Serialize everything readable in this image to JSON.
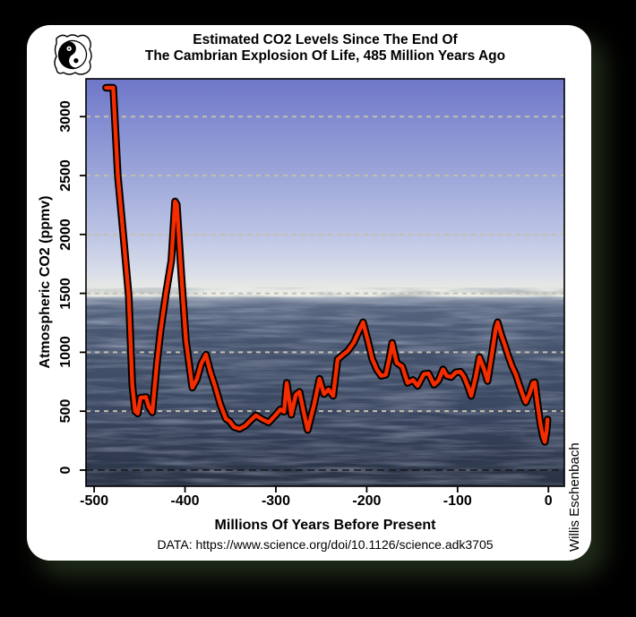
{
  "window": {
    "credit": "Willis Eschenbach"
  },
  "header": {
    "title_line1": "Estimated CO2 Levels Since The End Of",
    "title_line2": "The Cambrian Explosion Of Life, 485 Million Years Ago"
  },
  "footer": {
    "attribution": "DATA: https://www.science.org/doi/10.1126/science.adk3705"
  },
  "logo": {
    "name": "yin-yang-logo"
  },
  "colors": {
    "line_red": "#f42c00",
    "line_outline": "#000000",
    "grid_dash": "#c6bead",
    "zero_line": "#1a1a1a",
    "sky_top": "#6e76c8",
    "sky_horizon": "#eceee6",
    "ocean_mid": "#46536e",
    "ocean_deep": "#2b3346",
    "card_bg": "#ffffff",
    "page_bg": "#000000"
  },
  "chart_data": {
    "type": "line",
    "title": "Estimated CO2 Levels Since The End Of The Cambrian Explosion Of Life, 485 Million Years Ago",
    "xlabel": "Millions Of Years Before Present",
    "ylabel": "Atmospheric CO2 (ppmv)",
    "xlim": [
      -509,
      17.5
    ],
    "ylim": [
      -137,
      3321
    ],
    "x_ticks": [
      -500,
      -400,
      -300,
      -200,
      -100,
      0
    ],
    "x_tick_labels": [
      "-500",
      "-400",
      "-300",
      "-200",
      "-100",
      "0"
    ],
    "y_ticks": [
      0,
      500,
      1000,
      1500,
      2000,
      2500,
      3000
    ],
    "y_tick_labels": [
      "0",
      "500",
      "1000",
      "1500",
      "2000",
      "2500",
      "3000"
    ],
    "grid": "horizontal dashed gridlines at 500-3000; black dashed line at 0",
    "legend_position": "none",
    "background": "photo of ocean below sky, horizon at ~1480 ppmv level",
    "series": [
      {
        "name": "Estimated atmospheric CO2 (ppmv)",
        "color": "#f42c00",
        "outline": "#000000",
        "points": [
          [
            -487,
            3245
          ],
          [
            -479,
            3245
          ],
          [
            -474,
            2500
          ],
          [
            -468,
            2000
          ],
          [
            -462,
            1480
          ],
          [
            -458,
            720
          ],
          [
            -455,
            500
          ],
          [
            -452,
            480
          ],
          [
            -449,
            615
          ],
          [
            -443,
            620
          ],
          [
            -440,
            540
          ],
          [
            -436,
            490
          ],
          [
            -431,
            900
          ],
          [
            -427,
            1180
          ],
          [
            -421,
            1500
          ],
          [
            -415,
            1780
          ],
          [
            -411,
            2280
          ],
          [
            -409,
            2255
          ],
          [
            -404,
            1650
          ],
          [
            -399,
            1100
          ],
          [
            -392,
            700
          ],
          [
            -387,
            770
          ],
          [
            -382,
            905
          ],
          [
            -377,
            980
          ],
          [
            -372,
            830
          ],
          [
            -367,
            715
          ],
          [
            -361,
            555
          ],
          [
            -355,
            435
          ],
          [
            -351,
            415
          ],
          [
            -346,
            365
          ],
          [
            -340,
            350
          ],
          [
            -334,
            375
          ],
          [
            -328,
            420
          ],
          [
            -322,
            465
          ],
          [
            -315,
            430
          ],
          [
            -308,
            405
          ],
          [
            -300,
            470
          ],
          [
            -295,
            515
          ],
          [
            -291,
            495
          ],
          [
            -288,
            740
          ],
          [
            -283,
            470
          ],
          [
            -278,
            640
          ],
          [
            -274,
            665
          ],
          [
            -269,
            480
          ],
          [
            -265,
            340
          ],
          [
            -258,
            555
          ],
          [
            -252,
            775
          ],
          [
            -247,
            645
          ],
          [
            -242,
            685
          ],
          [
            -237,
            630
          ],
          [
            -232,
            940
          ],
          [
            -226,
            980
          ],
          [
            -221,
            1010
          ],
          [
            -214,
            1085
          ],
          [
            -208,
            1190
          ],
          [
            -204,
            1255
          ],
          [
            -198,
            1075
          ],
          [
            -194,
            945
          ],
          [
            -189,
            855
          ],
          [
            -184,
            800
          ],
          [
            -179,
            810
          ],
          [
            -175,
            950
          ],
          [
            -172,
            1080
          ],
          [
            -167,
            910
          ],
          [
            -161,
            880
          ],
          [
            -155,
            740
          ],
          [
            -149,
            765
          ],
          [
            -144,
            715
          ],
          [
            -137,
            815
          ],
          [
            -132,
            820
          ],
          [
            -126,
            725
          ],
          [
            -121,
            760
          ],
          [
            -116,
            855
          ],
          [
            -112,
            800
          ],
          [
            -107,
            790
          ],
          [
            -102,
            830
          ],
          [
            -97,
            835
          ],
          [
            -93,
            795
          ],
          [
            -88,
            700
          ],
          [
            -85,
            630
          ],
          [
            -80,
            790
          ],
          [
            -76,
            960
          ],
          [
            -71,
            860
          ],
          [
            -67,
            755
          ],
          [
            -62,
            1000
          ],
          [
            -58,
            1200
          ],
          [
            -56,
            1255
          ],
          [
            -52,
            1150
          ],
          [
            -48,
            1060
          ],
          [
            -44,
            965
          ],
          [
            -40,
            880
          ],
          [
            -36,
            815
          ],
          [
            -31,
            700
          ],
          [
            -27,
            610
          ],
          [
            -25,
            575
          ],
          [
            -21,
            645
          ],
          [
            -17,
            740
          ],
          [
            -15,
            745
          ],
          [
            -12,
            560
          ],
          [
            -9,
            400
          ],
          [
            -6,
            280
          ],
          [
            -4,
            240
          ],
          [
            -2,
            330
          ],
          [
            -1,
            430
          ]
        ]
      }
    ]
  }
}
